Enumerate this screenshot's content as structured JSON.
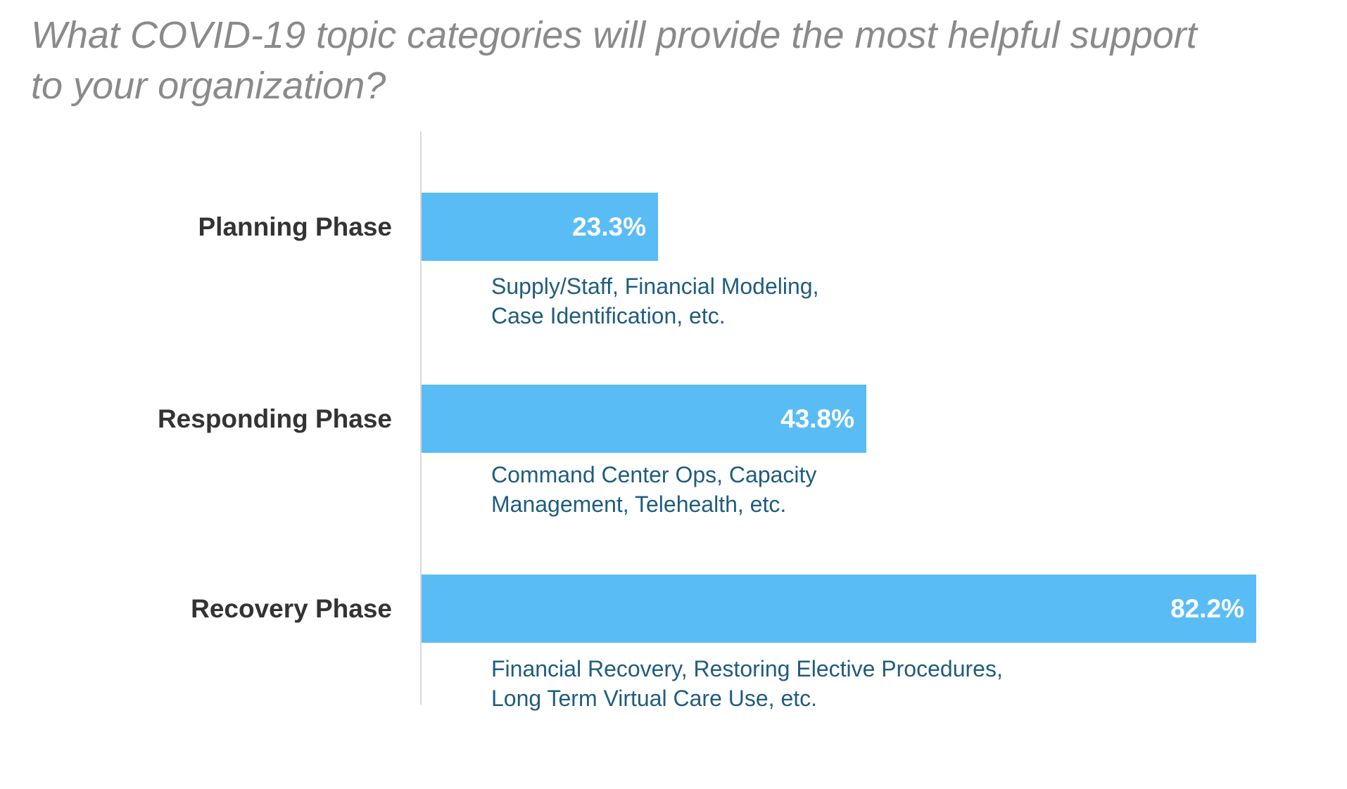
{
  "page": {
    "background": "#FFFFFF"
  },
  "chart_data": {
    "type": "bar",
    "orientation": "horizontal",
    "title": "What COVID-19 topic categories will provide the most helpful support\nto your organization?",
    "categories": [
      "Planning Phase",
      "Responding Phase",
      "Recovery Phase"
    ],
    "values": [
      23.3,
      43.8,
      82.2
    ],
    "value_labels": [
      "23.3%",
      "43.8%",
      "82.2%"
    ],
    "annotations": [
      "Supply/Staff, Financial Modeling,\nCase Identification, etc.",
      "Command Center Ops, Capacity\nManagement, Telehealth, etc.",
      "Financial Recovery, Restoring Elective Procedures,\nLong Term Virtual Care Use, etc."
    ],
    "xlim": [
      0,
      91.2
    ],
    "grid": false,
    "legend": false,
    "value_label_position": "inside-end",
    "colors": {
      "bar": "#5ABCF4",
      "value_label": "#FFFFFF",
      "category_label": "#333333",
      "annotation": "#1F5C7F",
      "title": "#8A8A8A",
      "axis_line": "#D9D9D9"
    }
  }
}
